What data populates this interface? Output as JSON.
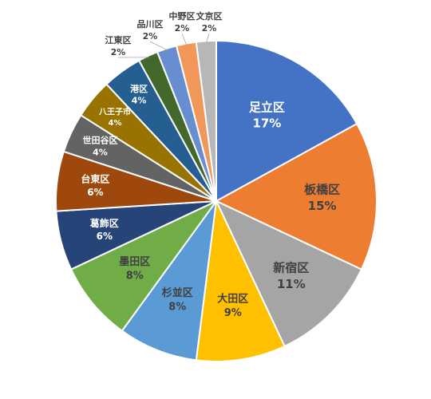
{
  "chart_data": {
    "type": "pie",
    "title": "",
    "start": "12 o'clock",
    "direction": "clockwise",
    "slices": [
      {
        "name": "足立区",
        "value": 17,
        "label": "17%",
        "color": "#4472C4",
        "text_color": "#ffffff"
      },
      {
        "name": "板橋区",
        "value": 15,
        "label": "15%",
        "color": "#ED7D31",
        "text_color": "#404040"
      },
      {
        "name": "新宿区",
        "value": 11,
        "label": "11%",
        "color": "#A5A5A5",
        "text_color": "#404040"
      },
      {
        "name": "大田区",
        "value": 9,
        "label": "9%",
        "color": "#FFC000",
        "text_color": "#404040"
      },
      {
        "name": "杉並区",
        "value": 8,
        "label": "8%",
        "color": "#5B9BD5",
        "text_color": "#404040"
      },
      {
        "name": "墨田区",
        "value": 8,
        "label": "8%",
        "color": "#70AD47",
        "text_color": "#404040"
      },
      {
        "name": "葛飾区",
        "value": 6,
        "label": "6%",
        "color": "#264478",
        "text_color": "#ffffff"
      },
      {
        "name": "台東区",
        "value": 6,
        "label": "6%",
        "color": "#9E480E",
        "text_color": "#ffffff"
      },
      {
        "name": "世田谷区",
        "value": 4,
        "label": "4%",
        "color": "#636363",
        "text_color": "#ffffff"
      },
      {
        "name": "八王子市",
        "value": 4,
        "label": "4%",
        "color": "#997300",
        "text_color": "#ffffff"
      },
      {
        "name": "港区",
        "value": 4,
        "label": "4%",
        "color": "#255E91",
        "text_color": "#ffffff"
      },
      {
        "name": "江東区",
        "value": 2,
        "label": "2%",
        "color": "#43682B",
        "text_color": "#404040"
      },
      {
        "name": "品川区",
        "value": 2,
        "label": "2%",
        "color": "#698ED0",
        "text_color": "#404040"
      },
      {
        "name": "中野区",
        "value": 2,
        "label": "2%",
        "color": "#F1975A",
        "text_color": "#404040"
      },
      {
        "name": "文京区",
        "value": 2,
        "label": "2%",
        "color": "#B7B7B7",
        "text_color": "#404040"
      }
    ]
  }
}
